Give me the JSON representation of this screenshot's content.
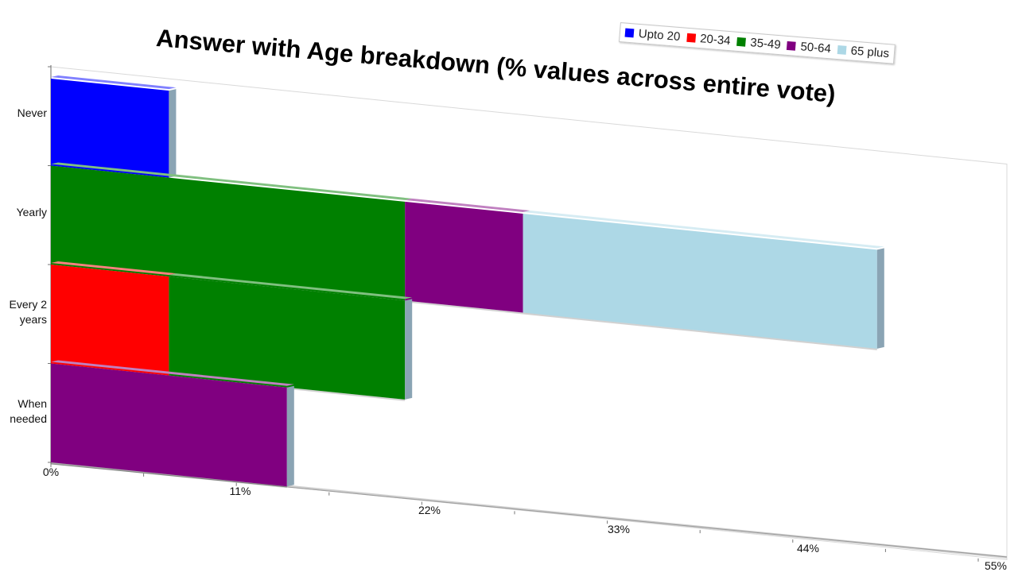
{
  "chart_data": {
    "type": "bar",
    "orientation": "horizontal",
    "stacked": true,
    "title": "Answer with Age breakdown (% values across entire vote)",
    "categories": [
      "Never",
      "Yearly",
      "Every 2 years",
      "When needed"
    ],
    "category_lines": [
      [
        "Never"
      ],
      [
        "Yearly"
      ],
      [
        "Every 2",
        "years"
      ],
      [
        "When",
        "needed"
      ]
    ],
    "series": [
      {
        "name": "Upto 20",
        "color": "#0000ff",
        "values": [
          7,
          0,
          0,
          0
        ]
      },
      {
        "name": "20-34",
        "color": "#ff0000",
        "values": [
          0,
          0,
          7,
          0
        ]
      },
      {
        "name": "35-49",
        "color": "#008000",
        "values": [
          0,
          21,
          14,
          0
        ]
      },
      {
        "name": "50-64",
        "color": "#800080",
        "values": [
          0,
          7,
          0,
          14
        ]
      },
      {
        "name": "65 plus",
        "color": "#add8e6",
        "values": [
          0,
          21,
          0,
          0
        ]
      }
    ],
    "x_ticks": [
      "0%",
      "11%",
      "22%",
      "33%",
      "44%",
      "55%"
    ],
    "xlim": [
      0,
      55
    ],
    "legend_position": "top-right",
    "grid": false
  }
}
